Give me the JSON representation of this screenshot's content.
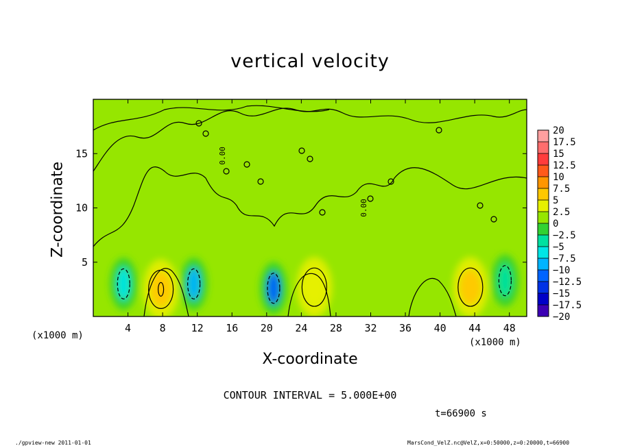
{
  "chart_data": {
    "type": "heatmap",
    "title": "vertical velocity",
    "xlabel": "X-coordinate",
    "ylabel": "Z-coordinate",
    "x_unit_label_left": "(x1000 m)",
    "x_unit_label_right": "(x1000 m)",
    "xlim": [
      0,
      50
    ],
    "ylim": [
      0,
      20
    ],
    "x_ticks": [
      4,
      8,
      12,
      16,
      20,
      24,
      28,
      32,
      36,
      40,
      44,
      48
    ],
    "y_ticks": [
      5,
      10,
      15
    ],
    "contour_interval_text": "CONTOUR INTERVAL = 5.000E+00",
    "time_text": "t=66900 s",
    "contour_labels": [
      {
        "text": "0.00",
        "x": 15.2,
        "z": 14.8
      },
      {
        "text": "0.00",
        "x": 31.5,
        "z": 10.0
      }
    ],
    "features": [
      {
        "kind": "updraft",
        "x": 7.8,
        "z": 2.5,
        "value": 7.5
      },
      {
        "kind": "updraft",
        "x": 25.5,
        "z": 2.7,
        "value": 5.0
      },
      {
        "kind": "updraft",
        "x": 43.5,
        "z": 2.7,
        "value": 6.0
      },
      {
        "kind": "downdraft",
        "x": 3.5,
        "z": 3.0,
        "value": -5.0
      },
      {
        "kind": "downdraft",
        "x": 11.6,
        "z": 3.0,
        "value": -7.5
      },
      {
        "kind": "downdraft",
        "x": 20.8,
        "z": 2.6,
        "value": -10.0
      },
      {
        "kind": "downdraft",
        "x": 47.5,
        "z": 3.3,
        "value": -4.0
      }
    ],
    "colorbar": {
      "levels": [
        "20",
        "17.5",
        "15",
        "12.5",
        "10",
        "7.5",
        "5",
        "2.5",
        "0",
        "-2.5",
        "-5",
        "-7.5",
        "-10",
        "-12.5",
        "-15",
        "-17.5",
        "-20"
      ],
      "colors": [
        "#ff9f9f",
        "#ff6d6d",
        "#ff3c3c",
        "#ff5a1a",
        "#ff9600",
        "#ffc800",
        "#e6f000",
        "#96e600",
        "#32d232",
        "#00e1a0",
        "#00e6e6",
        "#00b4ff",
        "#0064ff",
        "#0032e6",
        "#0000c8",
        "#3c00b4",
        "#7800c8"
      ]
    }
  },
  "footer": {
    "left": "./gpview-new  2011-01-01",
    "right": "MarsCond_VelZ.nc@VelZ,x=0:50000,z=0:20000,t=66900"
  }
}
